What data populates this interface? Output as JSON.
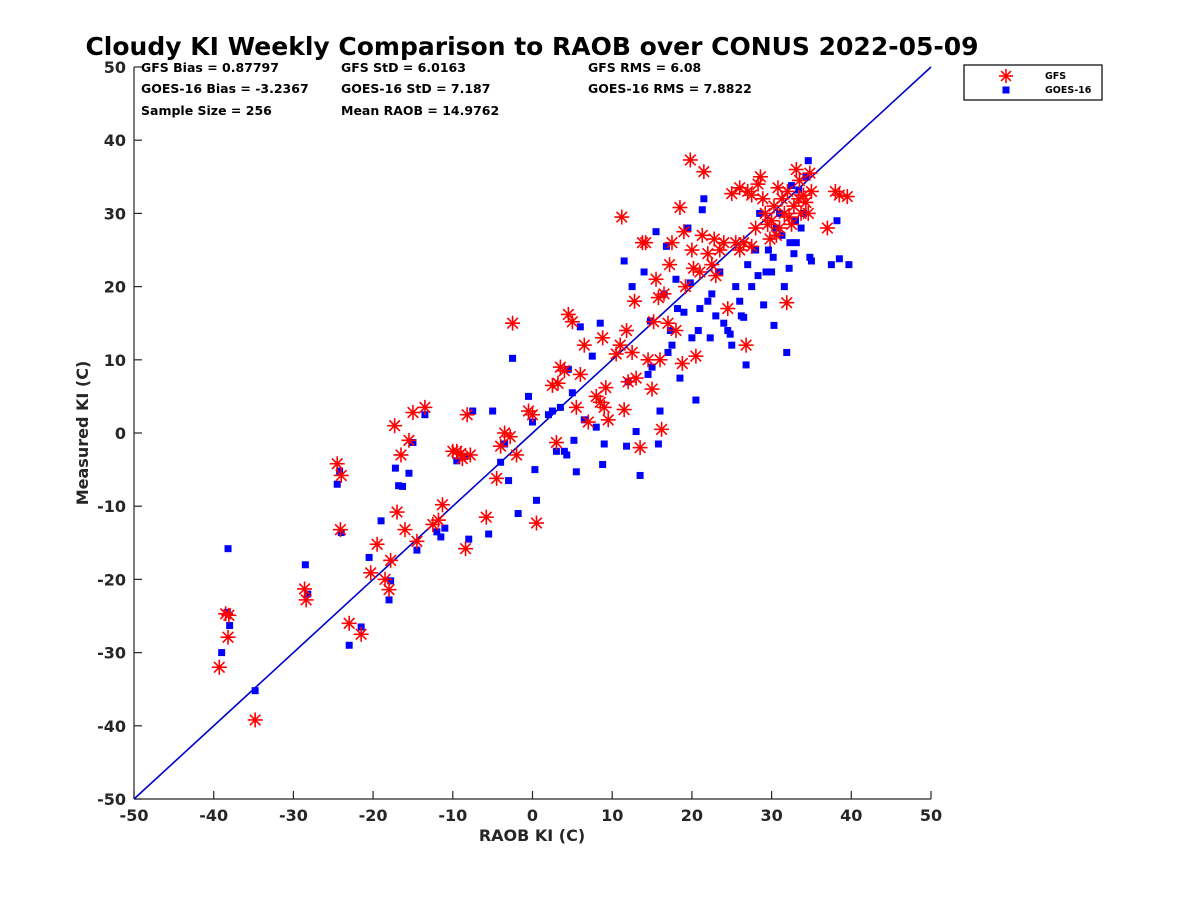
{
  "chart_data": {
    "type": "scatter",
    "title": "Cloudy KI Weekly Comparison to RAOB over CONUS 2022-05-09",
    "xlabel": "RAOB KI (C)",
    "ylabel": "Measured KI (C)",
    "xlim": [
      -50,
      50
    ],
    "ylim": [
      -50,
      50
    ],
    "xticks": [
      "-50",
      "-40",
      "-30",
      "-20",
      "-10",
      "0",
      "10",
      "20",
      "30",
      "40",
      "50"
    ],
    "yticks": [
      "50",
      "40",
      "30",
      "20",
      "10",
      "0",
      "-10",
      "-20",
      "-30",
      "-40",
      "-50"
    ],
    "grid": false,
    "legend_position": "outside-top-right",
    "stats": {
      "gfs_bias": "GFS Bias = 0.87797",
      "gfs_std": "GFS StD = 6.0163",
      "gfs_rms": "GFS RMS = 6.08",
      "goes_bias": "GOES-16 Bias = -3.2367",
      "goes_std": "GOES-16 StD = 7.187",
      "goes_rms": "GOES-16 RMS = 7.8822",
      "sample_size": "Sample Size = 256",
      "mean_raob": "Mean RAOB = 14.9762"
    },
    "reference_line": {
      "type": "1:1",
      "color": "#0000cc"
    },
    "series": [
      {
        "name": "GFS",
        "marker": "asterisk",
        "color": "#ff0000",
        "points": [
          [
            -39.3,
            -32.0
          ],
          [
            -38.5,
            -24.7
          ],
          [
            -38.1,
            -24.9
          ],
          [
            -38.2,
            -27.9
          ],
          [
            -34.8,
            -39.2
          ],
          [
            -28.6,
            -21.3
          ],
          [
            -28.4,
            -22.8
          ],
          [
            -24.5,
            -4.2
          ],
          [
            -24.0,
            -5.8
          ],
          [
            -24.1,
            -13.2
          ],
          [
            -23.0,
            -26.0
          ],
          [
            -21.5,
            -27.5
          ],
          [
            -20.3,
            -19.1
          ],
          [
            -19.5,
            -15.2
          ],
          [
            -18.5,
            -20.0
          ],
          [
            -18.0,
            -21.4
          ],
          [
            -17.8,
            -17.4
          ],
          [
            -17.3,
            1.0
          ],
          [
            -17.0,
            -10.8
          ],
          [
            -16.5,
            -3.0
          ],
          [
            -16.0,
            -13.2
          ],
          [
            -15.5,
            -1.0
          ],
          [
            -15.0,
            2.8
          ],
          [
            -14.5,
            -14.8
          ],
          [
            -13.5,
            3.5
          ],
          [
            -12.5,
            -12.5
          ],
          [
            -11.8,
            -11.9
          ],
          [
            -11.3,
            -9.8
          ],
          [
            -10.0,
            -2.5
          ],
          [
            -9.5,
            -2.5
          ],
          [
            -9.0,
            -2.8
          ],
          [
            -8.8,
            -3.5
          ],
          [
            -8.4,
            -15.8
          ],
          [
            -8.2,
            2.5
          ],
          [
            -7.8,
            -3.0
          ],
          [
            -5.8,
            -11.5
          ],
          [
            -4.5,
            -6.2
          ],
          [
            -4.0,
            -1.8
          ],
          [
            -3.5,
            0.0
          ],
          [
            -2.8,
            -0.5
          ],
          [
            -2.5,
            15.0
          ],
          [
            -2.0,
            -3.0
          ],
          [
            -0.5,
            3.0
          ],
          [
            0.0,
            2.5
          ],
          [
            0.5,
            -12.3
          ],
          [
            2.5,
            6.5
          ],
          [
            3.0,
            -1.3
          ],
          [
            3.2,
            6.8
          ],
          [
            3.5,
            9.0
          ],
          [
            4.0,
            8.5
          ],
          [
            4.5,
            16.2
          ],
          [
            5.0,
            15.2
          ],
          [
            5.5,
            3.5
          ],
          [
            6.0,
            8.0
          ],
          [
            6.5,
            12.0
          ],
          [
            7.0,
            1.5
          ],
          [
            8.0,
            5.0
          ],
          [
            8.5,
            4.2
          ],
          [
            8.8,
            13.0
          ],
          [
            9.0,
            3.5
          ],
          [
            9.2,
            6.2
          ],
          [
            9.5,
            1.8
          ],
          [
            11.2,
            29.5
          ],
          [
            11.5,
            3.2
          ],
          [
            11.8,
            14.0
          ],
          [
            12.0,
            7.0
          ],
          [
            12.5,
            11.0
          ],
          [
            12.8,
            18.0
          ],
          [
            13.0,
            7.5
          ],
          [
            13.5,
            -2.0
          ],
          [
            13.8,
            26.0
          ],
          [
            14.2,
            26.0
          ],
          [
            14.5,
            10.0
          ],
          [
            15.0,
            6.0
          ],
          [
            15.2,
            15.2
          ],
          [
            15.5,
            21.0
          ],
          [
            15.8,
            18.5
          ],
          [
            16.0,
            10.0
          ],
          [
            16.2,
            0.5
          ],
          [
            16.5,
            19.0
          ],
          [
            17.0,
            15.0
          ],
          [
            17.2,
            23.0
          ],
          [
            17.5,
            26.0
          ],
          [
            18.0,
            14.0
          ],
          [
            18.5,
            30.8
          ],
          [
            18.8,
            9.5
          ],
          [
            19.2,
            20.0
          ],
          [
            19.8,
            37.3
          ],
          [
            20.0,
            25.0
          ],
          [
            20.5,
            10.5
          ],
          [
            21.0,
            22.0
          ],
          [
            21.3,
            27.0
          ],
          [
            21.5,
            35.7
          ],
          [
            22.0,
            24.5
          ],
          [
            22.5,
            23.0
          ],
          [
            23.0,
            21.5
          ],
          [
            23.5,
            25.0
          ],
          [
            24.0,
            26.0
          ],
          [
            24.5,
            17.0
          ],
          [
            25.0,
            32.7
          ],
          [
            25.5,
            26.0
          ],
          [
            26.0,
            25.0
          ],
          [
            26.5,
            26.0
          ],
          [
            26.8,
            12.0
          ],
          [
            27.0,
            33.0
          ],
          [
            27.5,
            25.5
          ],
          [
            28.0,
            28.0
          ],
          [
            28.3,
            34.0
          ],
          [
            28.6,
            35.0
          ],
          [
            28.9,
            32.0
          ],
          [
            29.2,
            30.0
          ],
          [
            29.5,
            28.5
          ],
          [
            30.0,
            29.0
          ],
          [
            30.3,
            31.0
          ],
          [
            30.6,
            27.0
          ],
          [
            31.0,
            28.0
          ],
          [
            31.3,
            32.0
          ],
          [
            31.6,
            30.0
          ],
          [
            31.9,
            17.8
          ],
          [
            32.2,
            29.5
          ],
          [
            32.5,
            28.5
          ],
          [
            32.8,
            31.0
          ],
          [
            33.1,
            36.0
          ],
          [
            33.4,
            32.0
          ],
          [
            33.7,
            30.0
          ],
          [
            34.0,
            32.5
          ],
          [
            34.3,
            31.5
          ],
          [
            34.6,
            30.0
          ],
          [
            34.8,
            35.5
          ],
          [
            35.0,
            33.0
          ],
          [
            37.0,
            28.0
          ],
          [
            38.0,
            33.0
          ],
          [
            38.5,
            32.5
          ],
          [
            39.5,
            32.3
          ],
          [
            27.5,
            32.5
          ],
          [
            26.0,
            33.5
          ],
          [
            22.8,
            26.5
          ],
          [
            20.2,
            22.5
          ],
          [
            19.0,
            27.5
          ],
          [
            30.8,
            33.5
          ],
          [
            29.8,
            26.5
          ],
          [
            32.0,
            33.0
          ],
          [
            33.5,
            34.5
          ],
          [
            10.5,
            10.8
          ],
          [
            11.0,
            12.0
          ]
        ]
      },
      {
        "name": "GOES-16",
        "marker": "square",
        "color": "#0000ff",
        "points": [
          [
            -39.0,
            -30.0
          ],
          [
            -38.2,
            -15.8
          ],
          [
            -38.0,
            -26.3
          ],
          [
            -38.3,
            -24.5
          ],
          [
            -34.8,
            -35.2
          ],
          [
            -28.5,
            -18.0
          ],
          [
            -28.2,
            -22.0
          ],
          [
            -24.5,
            -7.0
          ],
          [
            -24.0,
            -13.6
          ],
          [
            -24.2,
            -5.2
          ],
          [
            -23.0,
            -29.0
          ],
          [
            -21.5,
            -26.5
          ],
          [
            -20.5,
            -17.0
          ],
          [
            -19.0,
            -12.0
          ],
          [
            -18.0,
            -22.8
          ],
          [
            -17.8,
            -20.2
          ],
          [
            -17.2,
            -4.8
          ],
          [
            -16.8,
            -7.2
          ],
          [
            -16.3,
            -7.3
          ],
          [
            -15.5,
            -5.5
          ],
          [
            -15.0,
            -1.3
          ],
          [
            -14.5,
            -16.0
          ],
          [
            -13.5,
            2.5
          ],
          [
            -12.0,
            -13.5
          ],
          [
            -11.5,
            -14.2
          ],
          [
            -11.0,
            -13.0
          ],
          [
            -9.5,
            -3.8
          ],
          [
            -8.5,
            -3.2
          ],
          [
            -8.0,
            -14.5
          ],
          [
            -7.5,
            3.0
          ],
          [
            -5.5,
            -13.8
          ],
          [
            -5.0,
            3.0
          ],
          [
            -4.0,
            -4.0
          ],
          [
            -3.5,
            -1.5
          ],
          [
            -3.0,
            -6.5
          ],
          [
            -2.5,
            10.2
          ],
          [
            -1.8,
            -11.0
          ],
          [
            -0.5,
            5.0
          ],
          [
            0.0,
            1.5
          ],
          [
            0.3,
            -5.0
          ],
          [
            0.5,
            -9.2
          ],
          [
            2.0,
            2.5
          ],
          [
            2.5,
            3.0
          ],
          [
            3.0,
            -2.5
          ],
          [
            3.5,
            3.5
          ],
          [
            4.0,
            -2.5
          ],
          [
            4.3,
            -3.0
          ],
          [
            4.5,
            8.7
          ],
          [
            5.0,
            5.5
          ],
          [
            5.2,
            -1.0
          ],
          [
            5.5,
            -5.3
          ],
          [
            6.0,
            14.5
          ],
          [
            6.5,
            1.8
          ],
          [
            7.5,
            10.5
          ],
          [
            8.0,
            0.8
          ],
          [
            8.5,
            15.0
          ],
          [
            8.8,
            -4.3
          ],
          [
            9.0,
            -1.5
          ],
          [
            11.5,
            23.5
          ],
          [
            11.8,
            -1.8
          ],
          [
            12.0,
            7.0
          ],
          [
            12.5,
            20.0
          ],
          [
            13.0,
            0.2
          ],
          [
            13.5,
            -5.8
          ],
          [
            14.0,
            22.0
          ],
          [
            14.5,
            8.0
          ],
          [
            15.0,
            9.0
          ],
          [
            15.5,
            27.5
          ],
          [
            15.8,
            -1.5
          ],
          [
            16.0,
            3.0
          ],
          [
            16.5,
            19.0
          ],
          [
            17.0,
            11.0
          ],
          [
            17.5,
            12.0
          ],
          [
            18.0,
            21.0
          ],
          [
            18.5,
            7.5
          ],
          [
            19.0,
            16.5
          ],
          [
            19.5,
            28.0
          ],
          [
            20.0,
            13.0
          ],
          [
            20.5,
            4.5
          ],
          [
            21.0,
            17.0
          ],
          [
            21.3,
            30.5
          ],
          [
            21.5,
            32.0
          ],
          [
            22.0,
            18.0
          ],
          [
            22.5,
            19.0
          ],
          [
            23.0,
            16.0
          ],
          [
            23.5,
            22.0
          ],
          [
            24.0,
            15.0
          ],
          [
            24.5,
            14.0
          ],
          [
            25.0,
            12.0
          ],
          [
            25.5,
            20.0
          ],
          [
            26.0,
            18.0
          ],
          [
            26.5,
            15.8
          ],
          [
            26.8,
            9.3
          ],
          [
            27.0,
            23.0
          ],
          [
            27.5,
            20.0
          ],
          [
            28.0,
            25.0
          ],
          [
            28.5,
            30.0
          ],
          [
            29.0,
            17.5
          ],
          [
            29.3,
            22.0
          ],
          [
            29.6,
            25.0
          ],
          [
            30.0,
            22.0
          ],
          [
            30.3,
            14.7
          ],
          [
            30.6,
            28.0
          ],
          [
            31.0,
            30.0
          ],
          [
            31.3,
            27.0
          ],
          [
            31.6,
            20.0
          ],
          [
            31.9,
            11.0
          ],
          [
            32.2,
            22.5
          ],
          [
            32.5,
            33.8
          ],
          [
            32.8,
            24.5
          ],
          [
            33.1,
            26.0
          ],
          [
            33.4,
            33.2
          ],
          [
            33.7,
            28.0
          ],
          [
            34.0,
            30.0
          ],
          [
            34.3,
            35.0
          ],
          [
            34.6,
            37.2
          ],
          [
            34.8,
            24.0
          ],
          [
            35.0,
            23.5
          ],
          [
            37.5,
            23.0
          ],
          [
            38.2,
            29.0
          ],
          [
            38.5,
            23.8
          ],
          [
            39.7,
            23.0
          ],
          [
            17.3,
            14.0
          ],
          [
            18.2,
            17.0
          ],
          [
            19.8,
            20.5
          ],
          [
            20.8,
            14.0
          ],
          [
            22.3,
            13.0
          ],
          [
            24.8,
            13.5
          ],
          [
            26.2,
            16.0
          ],
          [
            28.3,
            21.5
          ],
          [
            30.2,
            24.0
          ],
          [
            32.3,
            26.0
          ],
          [
            33.0,
            29.0
          ],
          [
            14.8,
            15.3
          ],
          [
            16.8,
            25.5
          ]
        ]
      }
    ]
  }
}
